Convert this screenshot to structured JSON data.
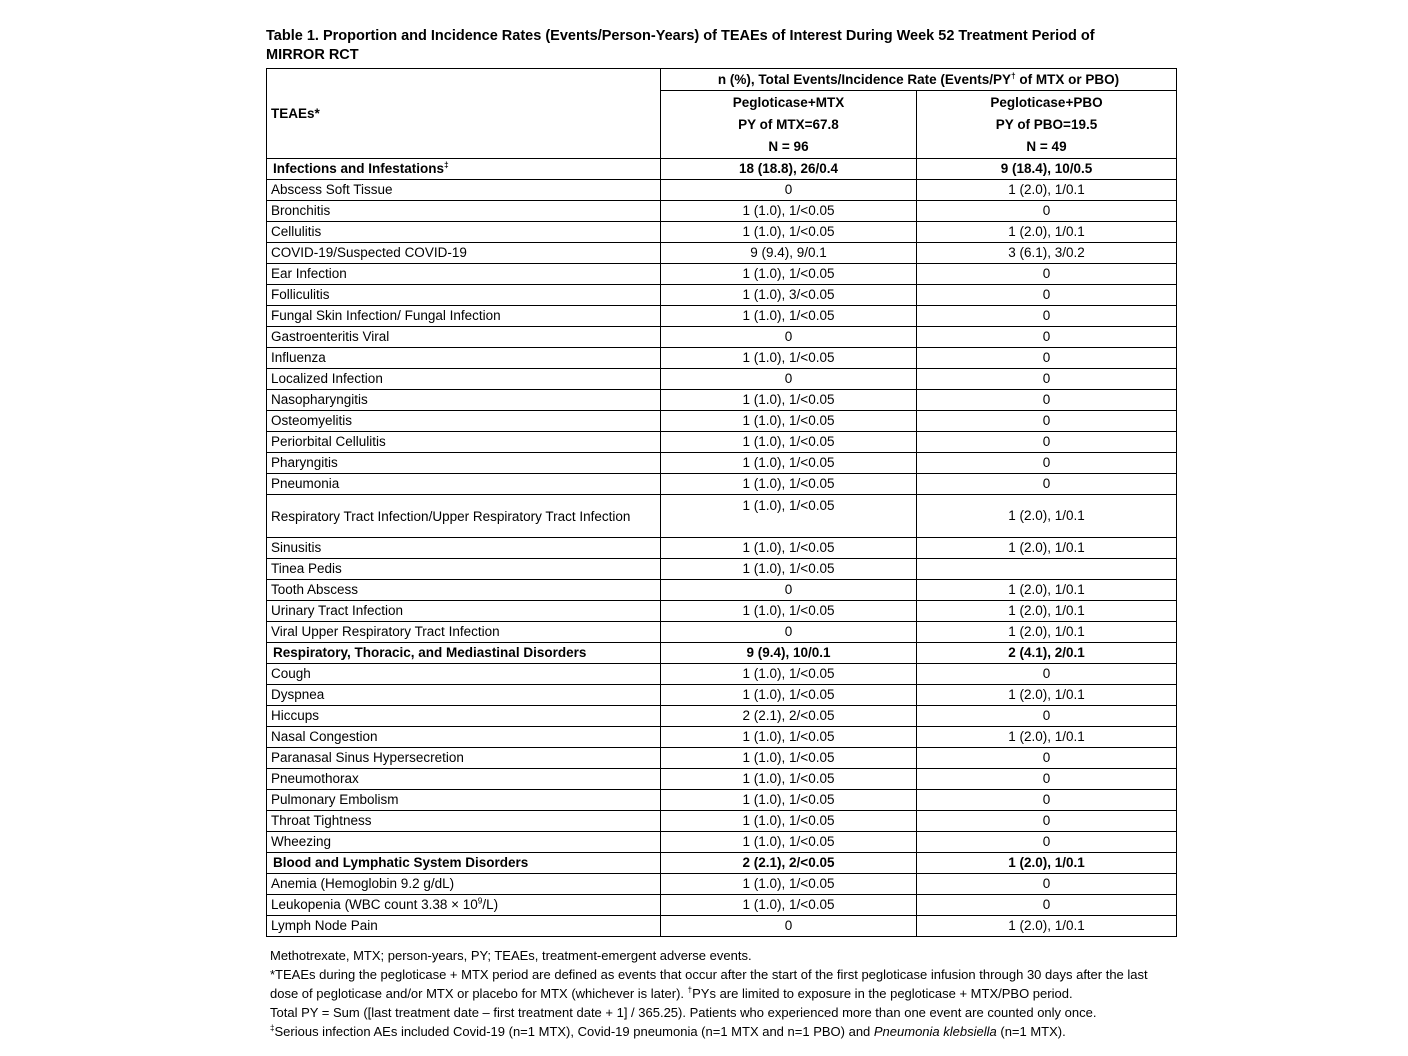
{
  "title": {
    "line1": "Table 1. Proportion and Incidence Rates (Events/Person-Years) of TEAEs of Interest During Week 52 Treatment Period of",
    "line2": "MIRROR RCT"
  },
  "table": {
    "header": {
      "teaes_label": "TEAEs*",
      "span_pre": "n (%), Total Events/Incidence Rate (Events/PY",
      "span_sup": "†",
      "span_post": " of MTX or PBO)",
      "mtx_lines": [
        "Pegloticase+MTX",
        "PY of MTX=67.8",
        "N = 96"
      ],
      "pbo_lines": [
        "Pegloticase+PBO",
        "PY of PBO=19.5",
        "N = 49"
      ]
    },
    "rows": [
      {
        "type": "category",
        "label": "Infections and Infestations",
        "sup": "‡",
        "mtx": "18 (18.8), 26/0.4",
        "pbo": "9 (18.4), 10/0.5"
      },
      {
        "type": "item",
        "label": "Abscess Soft Tissue",
        "mtx": "0",
        "pbo": "1 (2.0), 1/0.1"
      },
      {
        "type": "item",
        "label": "Bronchitis",
        "mtx": "1 (1.0), 1/<0.05",
        "pbo": "0"
      },
      {
        "type": "item",
        "label": "Cellulitis",
        "mtx": "1 (1.0), 1/<0.05",
        "pbo": "1 (2.0), 1/0.1"
      },
      {
        "type": "item",
        "label": "COVID-19/Suspected COVID-19",
        "mtx": "9 (9.4), 9/0.1",
        "pbo": "3 (6.1), 3/0.2"
      },
      {
        "type": "item",
        "label": "Ear Infection",
        "mtx": "1 (1.0), 1/<0.05",
        "pbo": "0"
      },
      {
        "type": "item",
        "label": "Folliculitis",
        "mtx": "1 (1.0), 3/<0.05",
        "pbo": "0"
      },
      {
        "type": "item",
        "label": "Fungal Skin Infection/ Fungal Infection",
        "mtx": "1 (1.0), 1/<0.05",
        "pbo": "0"
      },
      {
        "type": "item",
        "label": "Gastroenteritis Viral",
        "mtx": "0",
        "pbo": "0"
      },
      {
        "type": "item",
        "label": "Influenza",
        "mtx": "1 (1.0), 1/<0.05",
        "pbo": "0"
      },
      {
        "type": "item",
        "label": "Localized Infection",
        "mtx": "0",
        "pbo": "0"
      },
      {
        "type": "item",
        "label": "Nasopharyngitis",
        "mtx": "1 (1.0), 1/<0.05",
        "pbo": "0"
      },
      {
        "type": "item",
        "label": "Osteomyelitis",
        "mtx": "1 (1.0), 1/<0.05",
        "pbo": "0"
      },
      {
        "type": "item",
        "label": "Periorbital Cellulitis",
        "mtx": "1 (1.0), 1/<0.05",
        "pbo": "0"
      },
      {
        "type": "item",
        "label": "Pharyngitis",
        "mtx": "1 (1.0), 1/<0.05",
        "pbo": "0"
      },
      {
        "type": "item",
        "label": "Pneumonia",
        "mtx": "1 (1.0), 1/<0.05",
        "pbo": "0"
      },
      {
        "type": "item",
        "tall": true,
        "label": "Respiratory Tract Infection/Upper Respiratory Tract Infection",
        "mtx": "1 (1.0), 1/<0.05",
        "pbo": "1 (2.0), 1/0.1"
      },
      {
        "type": "item",
        "label": "Sinusitis",
        "mtx": "1 (1.0), 1/<0.05",
        "pbo": "1 (2.0), 1/0.1"
      },
      {
        "type": "item",
        "label": "Tinea Pedis",
        "mtx": "1 (1.0), 1/<0.05",
        "pbo": ""
      },
      {
        "type": "item",
        "label": "Tooth Abscess",
        "mtx": "0",
        "pbo": "1 (2.0), 1/0.1"
      },
      {
        "type": "item",
        "label": "Urinary Tract Infection",
        "mtx": "1 (1.0), 1/<0.05",
        "pbo": "1 (2.0), 1/0.1"
      },
      {
        "type": "item",
        "label": "Viral Upper Respiratory Tract Infection",
        "mtx": "0",
        "pbo": "1 (2.0), 1/0.1"
      },
      {
        "type": "category",
        "label": "Respiratory, Thoracic, and Mediastinal Disorders",
        "mtx": "9 (9.4), 10/0.1",
        "pbo": "2 (4.1), 2/0.1"
      },
      {
        "type": "item",
        "label": "Cough",
        "mtx": "1 (1.0), 1/<0.05",
        "pbo": "0"
      },
      {
        "type": "item",
        "label": "Dyspnea",
        "mtx": "1 (1.0), 1/<0.05",
        "pbo": "1 (2.0), 1/0.1"
      },
      {
        "type": "item",
        "label": "Hiccups",
        "mtx": "2 (2.1), 2/<0.05",
        "pbo": "0"
      },
      {
        "type": "item",
        "label": "Nasal Congestion",
        "mtx": "1 (1.0), 1/<0.05",
        "pbo": "1 (2.0), 1/0.1"
      },
      {
        "type": "item",
        "label": "Paranasal Sinus Hypersecretion",
        "mtx": "1 (1.0), 1/<0.05",
        "pbo": "0"
      },
      {
        "type": "item",
        "label": "Pneumothorax",
        "mtx": "1 (1.0), 1/<0.05",
        "pbo": "0"
      },
      {
        "type": "item",
        "label": "Pulmonary Embolism",
        "mtx": "1 (1.0), 1/<0.05",
        "pbo": "0"
      },
      {
        "type": "item",
        "label": "Throat Tightness",
        "mtx": "1 (1.0), 1/<0.05",
        "pbo": "0"
      },
      {
        "type": "item",
        "label": "Wheezing",
        "mtx": "1 (1.0), 1/<0.05",
        "pbo": "0"
      },
      {
        "type": "category",
        "label": "Blood and Lymphatic System Disorders",
        "mtx": "2 (2.1), 2/<0.05",
        "pbo": "1 (2.0), 1/0.1"
      },
      {
        "type": "item",
        "label": "Anemia (Hemoglobin 9.2 g/dL)",
        "mtx": "1 (1.0), 1/<0.05",
        "pbo": "0"
      },
      {
        "type": "item",
        "label": "Leukopenia (WBC count 3.38 × 10",
        "sup": "9",
        "post": "/L)",
        "mtx": "1 (1.0), 1/<0.05",
        "pbo": "0"
      },
      {
        "type": "item",
        "label": "Lymph Node Pain",
        "mtx": "0",
        "pbo": "1 (2.0), 1/0.1"
      }
    ]
  },
  "footnotes": [
    [
      {
        "t": "Methotrexate, MTX; person-years, PY; TEAEs, treatment-emergent adverse events."
      }
    ],
    [
      {
        "t": "*TEAEs during the pegloticase + MTX period are defined as events that occur after the start of the first pegloticase infusion through 30 days after the last dose of pegloticase and/or MTX or placebo for MTX (whichever is later). "
      },
      {
        "t": "†",
        "sup": true
      },
      {
        "t": "PYs are limited to exposure in the pegloticase + MTX/PBO period."
      }
    ],
    [
      {
        "t": "Total PY = Sum ([last treatment date – first treatment date + 1] / 365.25). Patients who experienced more than one event are counted only once."
      }
    ],
    [
      {
        "t": "‡",
        "sup": true
      },
      {
        "t": "Serious infection AEs included Covid-19 (n=1 MTX), Covid-19 pneumonia (n=1 MTX and n=1 PBO) and "
      },
      {
        "t": "Pneumonia klebsiella",
        "i": true
      },
      {
        "t": " (n=1 MTX)."
      }
    ]
  ]
}
